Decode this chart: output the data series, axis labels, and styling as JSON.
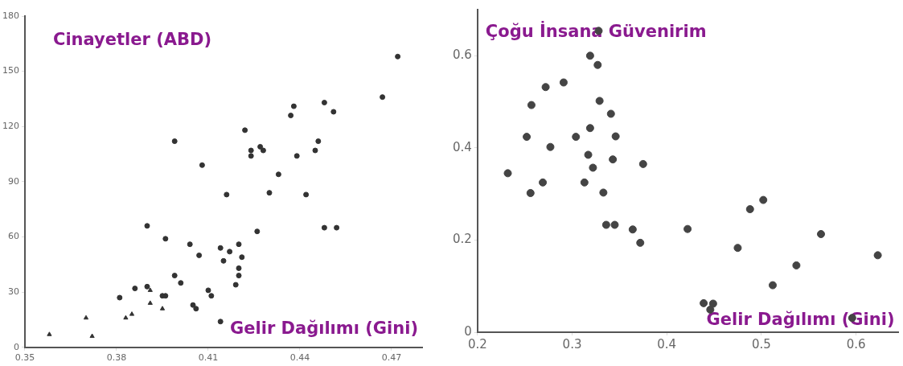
{
  "chart_data": [
    {
      "type": "scatter",
      "ylabel": "Cinayetler (ABD)",
      "xlabel": "Gelir Dağılımı (Gini)",
      "xlim": [
        0.35,
        0.48
      ],
      "ylim": [
        0,
        180
      ],
      "xticks": [
        0.35,
        0.38,
        0.41,
        0.44,
        0.47
      ],
      "yticks": [
        0,
        30,
        60,
        90,
        120,
        150,
        180
      ],
      "grid": false,
      "legend": false,
      "marker": "circle",
      "series": [
        {
          "color": "#333333",
          "x": [
            0.472,
            0.467,
            0.438,
            0.437,
            0.448,
            0.451,
            0.422,
            0.399,
            0.446,
            0.445,
            0.424,
            0.424,
            0.427,
            0.428,
            0.439,
            0.408,
            0.433,
            0.416,
            0.43,
            0.442,
            0.448,
            0.452,
            0.426,
            0.39,
            0.396,
            0.404,
            0.407,
            0.414,
            0.417,
            0.415,
            0.42,
            0.421,
            0.42,
            0.42,
            0.419,
            0.399,
            0.401,
            0.39,
            0.386,
            0.395,
            0.396,
            0.41,
            0.411,
            0.381,
            0.405,
            0.406,
            0.414
          ],
          "values": [
            158,
            136,
            131,
            126,
            133,
            128,
            118,
            112,
            112,
            107,
            107,
            104,
            109,
            107,
            104,
            99,
            94,
            83,
            84,
            83,
            65,
            65,
            63,
            66,
            59,
            56,
            50,
            54,
            52,
            47,
            56,
            49,
            43,
            39,
            34,
            39,
            35,
            33,
            32,
            28,
            28,
            31,
            28,
            27,
            23,
            21,
            14
          ]
        },
        {
          "color": "#333333",
          "marker": "triangle",
          "x": [
            0.391,
            0.391,
            0.395,
            0.383,
            0.385,
            0.37,
            0.372,
            0.358
          ],
          "values": [
            31,
            24,
            21,
            16,
            18,
            16,
            6,
            7
          ]
        }
      ]
    },
    {
      "type": "scatter",
      "ylabel": "Çoğu İnsana Güvenirim",
      "xlabel": "Gelir Dağılımı (Gini)",
      "xlim": [
        0.2,
        0.645
      ],
      "ylim": [
        0,
        0.7
      ],
      "xticks": [
        0.2,
        0.3,
        0.4,
        0.5,
        0.6
      ],
      "yticks": [
        0,
        0.2,
        0.4,
        0.6
      ],
      "grid": false,
      "legend": false,
      "marker": "circle",
      "series": [
        {
          "color": "#444444",
          "x": [
            0.328,
            0.319,
            0.327,
            0.291,
            0.272,
            0.257,
            0.329,
            0.341,
            0.319,
            0.252,
            0.304,
            0.346,
            0.277,
            0.317,
            0.343,
            0.375,
            0.322,
            0.232,
            0.269,
            0.313,
            0.256,
            0.333,
            0.336,
            0.345,
            0.364,
            0.372,
            0.422,
            0.475,
            0.488,
            0.502,
            0.563,
            0.537,
            0.512,
            0.623,
            0.596,
            0.439,
            0.449,
            0.446
          ],
          "values": [
            0.654,
            0.6,
            0.58,
            0.542,
            0.532,
            0.493,
            0.502,
            0.474,
            0.443,
            0.424,
            0.424,
            0.425,
            0.402,
            0.385,
            0.375,
            0.365,
            0.357,
            0.345,
            0.325,
            0.325,
            0.302,
            0.303,
            0.233,
            0.233,
            0.223,
            0.194,
            0.224,
            0.183,
            0.267,
            0.287,
            0.213,
            0.145,
            0.102,
            0.167,
            0.031,
            0.063,
            0.062,
            0.049
          ]
        }
      ]
    }
  ]
}
